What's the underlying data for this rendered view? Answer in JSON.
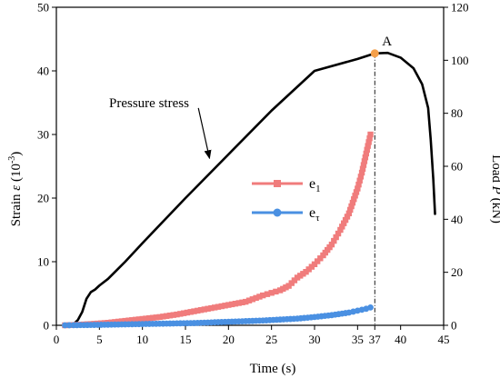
{
  "chart_data": {
    "type": "line",
    "title": "",
    "xlabel": "Time (s)",
    "ylabel_left": "Strain ε (10⁻³)",
    "ylabel_left_main": "Strain ",
    "ylabel_left_symbol": "ε",
    "ylabel_left_unit": " (10",
    "ylabel_left_exp": "-3",
    "ylabel_left_close": ")",
    "ylabel_right": "Load P (kN)",
    "ylabel_right_main": "Load ",
    "ylabel_right_symbol": "P",
    "ylabel_right_unit": " (kN)",
    "xlim": [
      0,
      45
    ],
    "ylim_left": [
      0,
      50
    ],
    "ylim_right": [
      0,
      120
    ],
    "x_ticks": [
      0,
      5,
      10,
      15,
      20,
      25,
      30,
      35,
      37,
      40,
      45
    ],
    "x_tick_labels": [
      "0",
      "5",
      "10",
      "15",
      "20",
      "25",
      "30",
      "35",
      "37",
      "40",
      "45"
    ],
    "y_left_ticks": [
      0,
      10,
      20,
      30,
      40,
      50
    ],
    "y_left_tick_labels": [
      "0",
      "10",
      "20",
      "30",
      "40",
      "50"
    ],
    "y_right_ticks": [
      0,
      20,
      40,
      60,
      80,
      100,
      120
    ],
    "y_right_tick_labels": [
      "0",
      "20",
      "40",
      "60",
      "80",
      "100",
      "120"
    ],
    "grid": false,
    "legend_position": "center-right",
    "annotations": {
      "pressure_label": "Pressure stress",
      "point_label": "A",
      "point": {
        "x": 37,
        "load": 102.6
      },
      "arrow_from": {
        "x": 16.5,
        "load": 82
      },
      "arrow_to": {
        "x": 17.8,
        "load": 63
      },
      "vline_x": 37
    },
    "series": [
      {
        "name": "Load",
        "axis": "right",
        "color": "#000000",
        "x": [
          1.5,
          2,
          2.5,
          3,
          3.5,
          4,
          4.5,
          5,
          6,
          8,
          10,
          15,
          20,
          25,
          30,
          35,
          37,
          38.5,
          40,
          41.5,
          42.5,
          43.2,
          43.5,
          43.8,
          44
        ],
        "values": [
          0,
          0.5,
          2,
          5,
          10,
          12.5,
          13.5,
          15,
          17.5,
          24,
          31,
          48,
          64.5,
          81,
          96,
          100.5,
          102.6,
          102.8,
          101,
          97,
          91,
          82,
          70,
          55,
          42
        ]
      },
      {
        "name": "e₁",
        "name_main": "e",
        "name_sub": "1",
        "axis": "left",
        "color": "#f07c7c",
        "marker": "square",
        "x": [
          1,
          2,
          4,
          6,
          8,
          10,
          12,
          14,
          16,
          18,
          20,
          22,
          24,
          25,
          26,
          27,
          28,
          29,
          30,
          31,
          32,
          33,
          34,
          35,
          35.5,
          36,
          36.5
        ],
        "values": [
          0,
          0.05,
          0.2,
          0.4,
          0.7,
          1.0,
          1.3,
          1.7,
          2.2,
          2.7,
          3.2,
          3.7,
          4.7,
          5.1,
          5.5,
          6.2,
          7.5,
          8.4,
          9.6,
          11.0,
          12.7,
          15.0,
          17.6,
          21.5,
          24,
          27,
          30
        ]
      },
      {
        "name": "eτ",
        "name_main": "e",
        "name_sub": "τ",
        "axis": "left",
        "color": "#4a90e2",
        "marker": "circle",
        "x": [
          1,
          2,
          4,
          6,
          8,
          10,
          12,
          14,
          16,
          18,
          20,
          22,
          24,
          26,
          28,
          30,
          32,
          34,
          35,
          36,
          36.5
        ],
        "values": [
          0,
          0.02,
          0.05,
          0.1,
          0.15,
          0.2,
          0.25,
          0.3,
          0.35,
          0.45,
          0.55,
          0.65,
          0.75,
          0.9,
          1.05,
          1.3,
          1.6,
          2.0,
          2.3,
          2.6,
          2.8
        ]
      }
    ]
  }
}
